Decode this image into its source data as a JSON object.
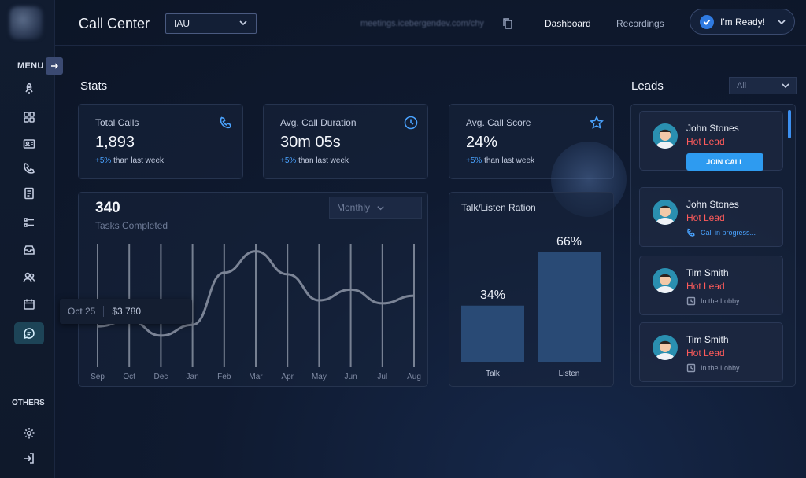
{
  "sidebar": {
    "menu_label": "MENU",
    "others_label": "OTHERS",
    "nav_icons": [
      "rocket-icon",
      "grid-icon",
      "contact-card-icon",
      "phone-icon",
      "document-icon",
      "list-icon",
      "inbox-icon",
      "users-icon",
      "calendar-icon",
      "chat-icon"
    ],
    "active_icon": "chat-icon",
    "bottom_icons": [
      "gear-icon",
      "logout-icon"
    ]
  },
  "header": {
    "title": "Call Center",
    "team_select": "IAU",
    "meeting_url": "meetings.icebergendev.com/chy",
    "nav": [
      "Dashboard",
      "Recordings"
    ],
    "active_nav": "Dashboard",
    "ready_button": "I'm Ready!"
  },
  "stats": {
    "title": "Stats",
    "cards": [
      {
        "label": "Total Calls",
        "value": "1,893",
        "change": "+5%",
        "change_suffix": "than last week",
        "icon": "phone-icon"
      },
      {
        "label": "Avg. Call Duration",
        "value": "30m 05s",
        "change": "+5%",
        "change_suffix": "than last week",
        "icon": "clock-icon"
      },
      {
        "label": "Avg. Call Score",
        "value": "24%",
        "change": "+5%",
        "change_suffix": "than last week",
        "icon": "star-icon"
      }
    ]
  },
  "tasks": {
    "value": "340",
    "label": "Tasks Completed",
    "period": "Monthly",
    "tooltip": {
      "date": "Oct 25",
      "value": "$3,780"
    }
  },
  "ratio": {
    "title": "Talk/Listen Ration"
  },
  "leads": {
    "title": "Leads",
    "filter": "All",
    "items": [
      {
        "name": "John Stones",
        "tag": "Hot Lead",
        "action": "JOIN CALL"
      },
      {
        "name": "John Stones",
        "tag": "Hot Lead",
        "status": "Call in progress..."
      },
      {
        "name": "Tim Smith",
        "tag": "Hot Lead",
        "status": "In the Lobby..."
      },
      {
        "name": "Tim Smith",
        "tag": "Hot Lead",
        "status": "In the Lobby..."
      }
    ]
  },
  "chart_data": [
    {
      "type": "line",
      "categories": [
        "Sep",
        "Oct",
        "Dec",
        "Jan",
        "Feb",
        "Mar",
        "Apr",
        "May",
        "Jun",
        "Jul",
        "Aug"
      ],
      "values": [
        2300,
        2700,
        1700,
        2400,
        5800,
        7200,
        5700,
        4000,
        4700,
        3800,
        4300
      ],
      "ylim": [
        0,
        10000
      ],
      "grid": "vertical"
    },
    {
      "type": "bar",
      "categories": [
        "Talk",
        "Listen"
      ],
      "values": [
        34,
        66
      ],
      "data_labels": [
        "34%",
        "66%"
      ],
      "ylim": [
        0,
        80
      ]
    }
  ],
  "colors": {
    "accent": "#2e9bf0",
    "positive": "#4aa3ff",
    "hot_lead": "#ff5b5b",
    "bar": "#294a75"
  }
}
